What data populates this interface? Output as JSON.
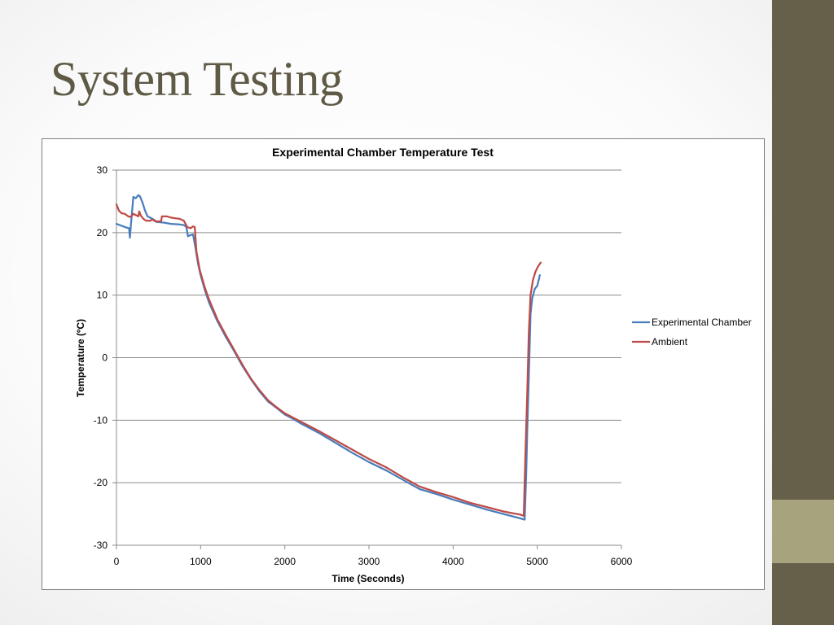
{
  "slide": {
    "title": "System Testing",
    "colors": {
      "title": "#5f5a45",
      "sidebar": "#665f4a",
      "sidebar_accent": "#a7a37d"
    }
  },
  "chart_data": {
    "type": "line",
    "title": "Experimental Chamber Temperature Test",
    "xlabel": "Time (Seconds)",
    "ylabel": "Temperature (ºC)",
    "xlim": [
      0,
      6000
    ],
    "ylim": [
      -30,
      30
    ],
    "xticks": [
      0,
      1000,
      2000,
      3000,
      4000,
      5000,
      6000
    ],
    "yticks": [
      30,
      20,
      10,
      0,
      -10,
      -20,
      -30
    ],
    "grid": "horizontal",
    "legend_position": "right",
    "series": [
      {
        "name": "Experimental Chamber",
        "color": "#4a7ebb",
        "points": [
          [
            0,
            21.4
          ],
          [
            60,
            21.1
          ],
          [
            120,
            20.8
          ],
          [
            150,
            20.7
          ],
          [
            160,
            19.2
          ],
          [
            170,
            21.0
          ],
          [
            200,
            25.7
          ],
          [
            230,
            25.5
          ],
          [
            260,
            26.0
          ],
          [
            280,
            25.8
          ],
          [
            310,
            24.8
          ],
          [
            340,
            23.5
          ],
          [
            370,
            22.6
          ],
          [
            400,
            22.4
          ],
          [
            440,
            22.1
          ],
          [
            480,
            21.7
          ],
          [
            560,
            21.6
          ],
          [
            650,
            21.4
          ],
          [
            750,
            21.3
          ],
          [
            800,
            21.2
          ],
          [
            830,
            20.9
          ],
          [
            850,
            19.4
          ],
          [
            880,
            19.6
          ],
          [
            910,
            19.7
          ],
          [
            940,
            17.5
          ],
          [
            970,
            15.0
          ],
          [
            1000,
            13.2
          ],
          [
            1050,
            10.8
          ],
          [
            1100,
            8.8
          ],
          [
            1200,
            5.8
          ],
          [
            1300,
            3.3
          ],
          [
            1400,
            1.0
          ],
          [
            1500,
            -1.4
          ],
          [
            1600,
            -3.5
          ],
          [
            1700,
            -5.4
          ],
          [
            1800,
            -7.0
          ],
          [
            1900,
            -8.0
          ],
          [
            2000,
            -9.1
          ],
          [
            2100,
            -9.8
          ],
          [
            2200,
            -10.6
          ],
          [
            2400,
            -12.0
          ],
          [
            2600,
            -13.6
          ],
          [
            2800,
            -15.2
          ],
          [
            3000,
            -16.7
          ],
          [
            3200,
            -18.0
          ],
          [
            3400,
            -19.5
          ],
          [
            3600,
            -21.0
          ],
          [
            3800,
            -21.8
          ],
          [
            4000,
            -22.7
          ],
          [
            4200,
            -23.5
          ],
          [
            4400,
            -24.3
          ],
          [
            4600,
            -25.0
          ],
          [
            4800,
            -25.7
          ],
          [
            4850,
            -25.9
          ],
          [
            4870,
            -18.0
          ],
          [
            4880,
            -12.0
          ],
          [
            4900,
            -3.0
          ],
          [
            4920,
            7.0
          ],
          [
            4940,
            9.5
          ],
          [
            4970,
            11.0
          ],
          [
            5000,
            11.5
          ],
          [
            5030,
            13.2
          ]
        ]
      },
      {
        "name": "Ambient",
        "color": "#be4b48",
        "points": [
          [
            0,
            24.5
          ],
          [
            30,
            23.5
          ],
          [
            60,
            23.1
          ],
          [
            100,
            23.0
          ],
          [
            140,
            22.6
          ],
          [
            170,
            22.5
          ],
          [
            200,
            23.0
          ],
          [
            230,
            22.8
          ],
          [
            260,
            22.6
          ],
          [
            270,
            23.4
          ],
          [
            290,
            22.7
          ],
          [
            320,
            22.2
          ],
          [
            350,
            21.9
          ],
          [
            400,
            21.9
          ],
          [
            430,
            22.1
          ],
          [
            460,
            21.8
          ],
          [
            530,
            21.8
          ],
          [
            540,
            22.6
          ],
          [
            600,
            22.6
          ],
          [
            650,
            22.4
          ],
          [
            700,
            22.3
          ],
          [
            750,
            22.2
          ],
          [
            800,
            21.9
          ],
          [
            840,
            20.9
          ],
          [
            880,
            20.7
          ],
          [
            910,
            21.0
          ],
          [
            930,
            20.9
          ],
          [
            950,
            17.0
          ],
          [
            990,
            14.0
          ],
          [
            1050,
            11.2
          ],
          [
            1100,
            9.3
          ],
          [
            1200,
            6.1
          ],
          [
            1300,
            3.6
          ],
          [
            1400,
            1.2
          ],
          [
            1500,
            -1.2
          ],
          [
            1600,
            -3.4
          ],
          [
            1700,
            -5.2
          ],
          [
            1800,
            -6.8
          ],
          [
            1900,
            -7.9
          ],
          [
            2000,
            -8.9
          ],
          [
            2200,
            -10.3
          ],
          [
            2400,
            -11.7
          ],
          [
            2600,
            -13.2
          ],
          [
            2800,
            -14.7
          ],
          [
            3000,
            -16.2
          ],
          [
            3200,
            -17.5
          ],
          [
            3400,
            -19.1
          ],
          [
            3600,
            -20.6
          ],
          [
            3800,
            -21.5
          ],
          [
            4000,
            -22.3
          ],
          [
            4200,
            -23.2
          ],
          [
            4400,
            -23.9
          ],
          [
            4600,
            -24.6
          ],
          [
            4800,
            -25.1
          ],
          [
            4840,
            -25.3
          ],
          [
            4860,
            -15.0
          ],
          [
            4880,
            -6.0
          ],
          [
            4900,
            4.0
          ],
          [
            4920,
            10.0
          ],
          [
            4950,
            12.5
          ],
          [
            4980,
            13.8
          ],
          [
            5010,
            14.6
          ],
          [
            5040,
            15.2
          ]
        ]
      }
    ]
  }
}
